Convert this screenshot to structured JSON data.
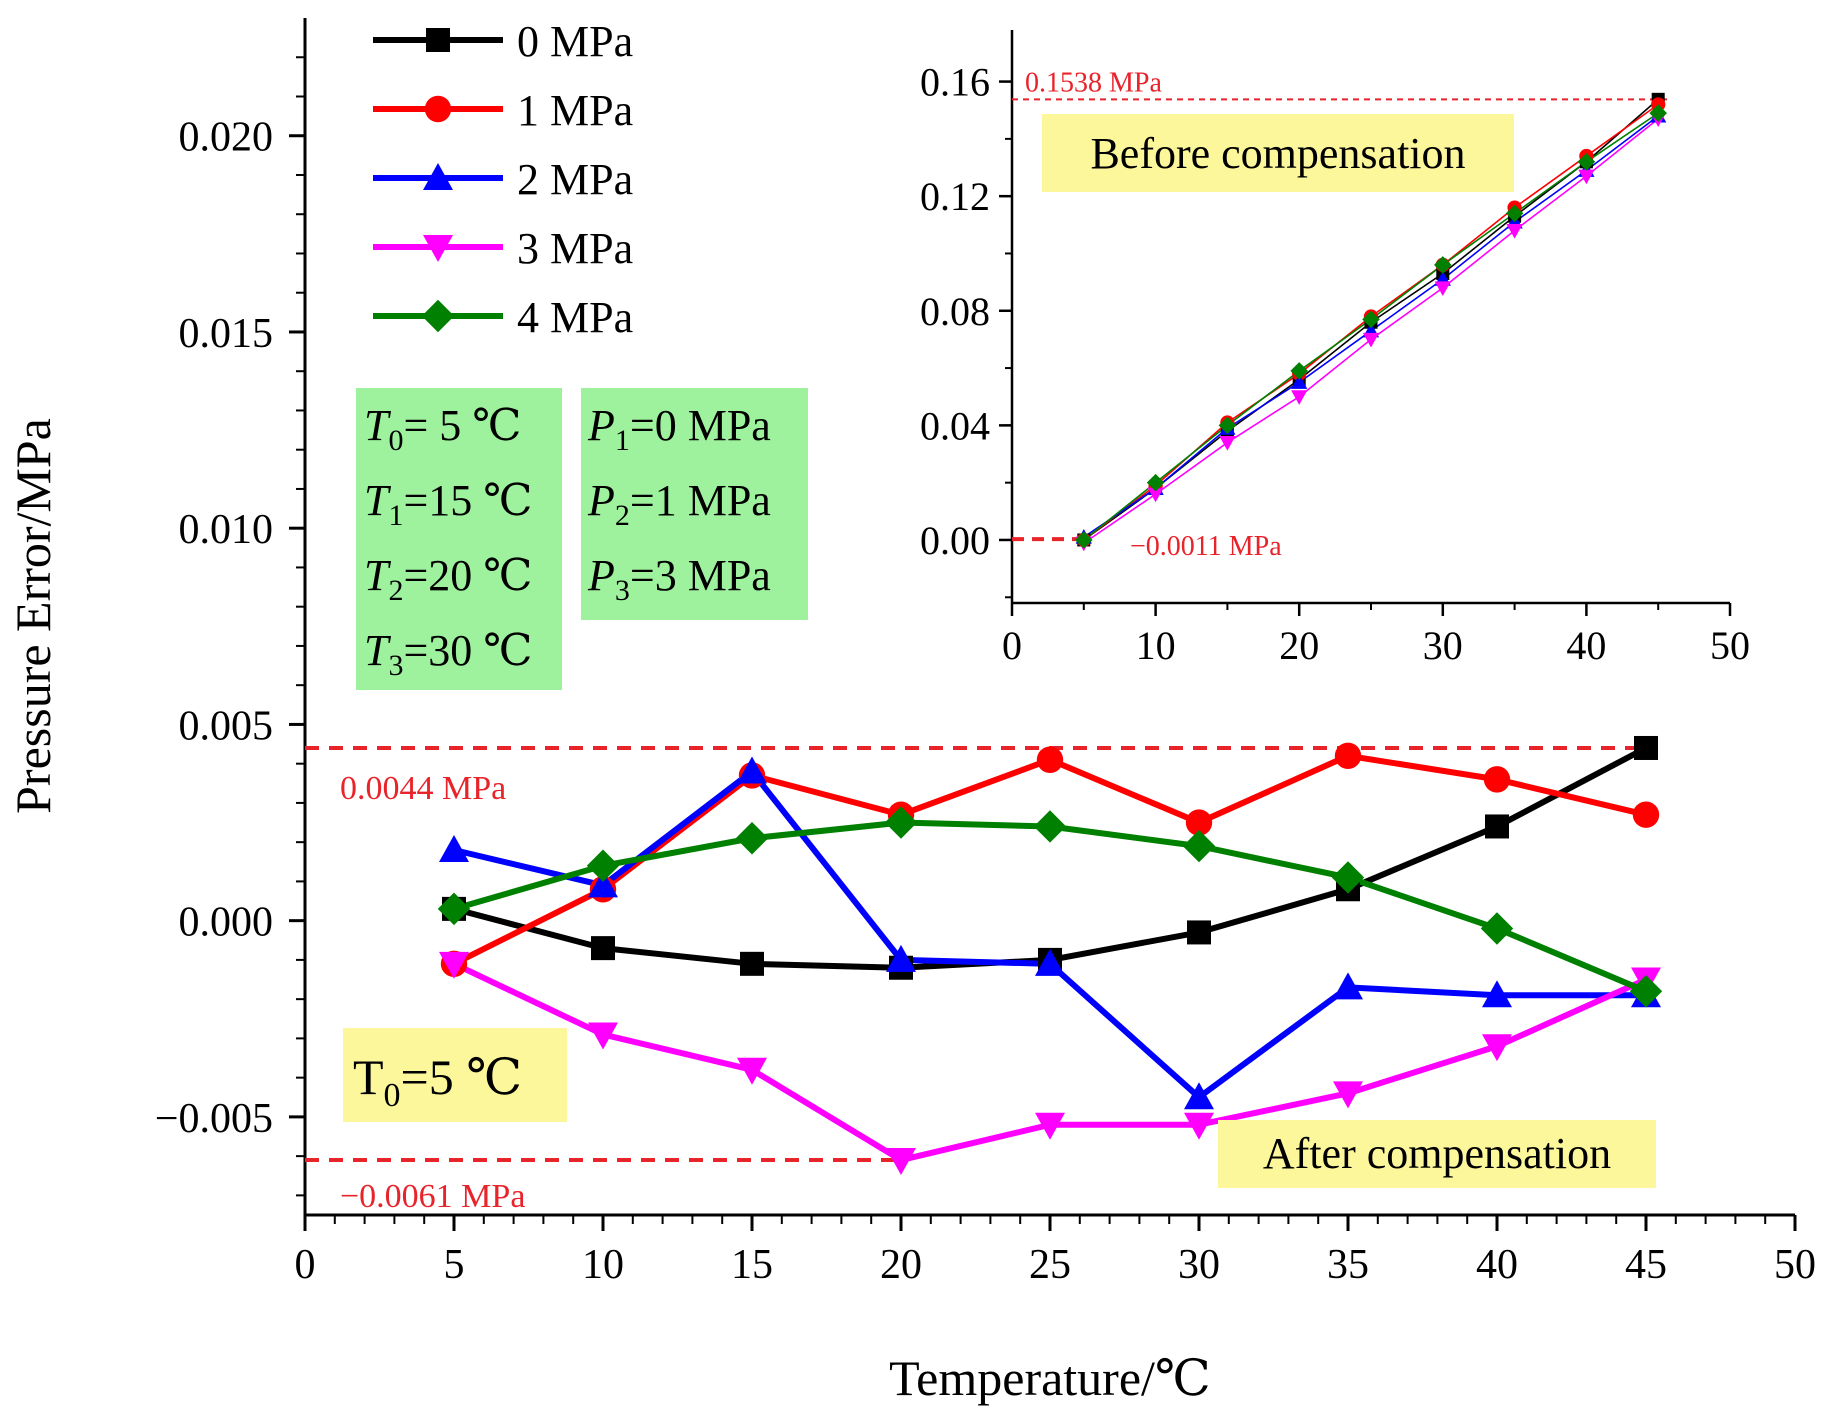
{
  "chart_data": [
    {
      "id": "main",
      "type": "line",
      "xlabel": "Temperature/℃",
      "ylabel": "Pressure Error/MPa",
      "xlim": [
        0,
        50
      ],
      "ylim": [
        -0.0075,
        0.023
      ],
      "xticks": [
        0,
        5,
        10,
        15,
        20,
        25,
        30,
        35,
        40,
        45,
        50
      ],
      "xtick_labels": [
        "0",
        "5",
        "10",
        "15",
        "20",
        "25",
        "30",
        "35",
        "40",
        "45",
        "50"
      ],
      "yticks": [
        -0.005,
        0.0,
        0.005,
        0.01,
        0.015,
        0.02
      ],
      "ytick_labels": [
        "−0.005",
        "0.000",
        "0.005",
        "0.010",
        "0.015",
        "0.020"
      ],
      "x": [
        5,
        10,
        15,
        20,
        25,
        30,
        35,
        40,
        45
      ],
      "series": [
        {
          "name": "0 MPa",
          "color": "#000000",
          "marker": "square",
          "values": [
            0.0003,
            -0.0007,
            -0.0011,
            -0.0012,
            -0.001,
            -0.0003,
            0.0008,
            0.0024,
            0.0044
          ]
        },
        {
          "name": "1 MPa",
          "color": "#ff0000",
          "marker": "circle",
          "values": [
            -0.0011,
            0.0008,
            0.0037,
            0.0027,
            0.0041,
            0.0025,
            0.0042,
            0.0036,
            0.0027
          ]
        },
        {
          "name": "2 MPa",
          "color": "#0000ff",
          "marker": "triangle-up",
          "values": [
            0.0018,
            0.0009,
            0.0038,
            -0.001,
            -0.0011,
            -0.0045,
            -0.0017,
            -0.0019,
            -0.0019
          ]
        },
        {
          "name": "3 MPa",
          "color": "#ff00ff",
          "marker": "triangle-down",
          "values": [
            -0.0011,
            -0.0029,
            -0.0038,
            -0.0061,
            -0.0052,
            -0.0052,
            -0.0044,
            -0.0032,
            -0.0015
          ]
        },
        {
          "name": "4 MPa",
          "color": "#008000",
          "marker": "diamond",
          "values": [
            0.0003,
            0.0014,
            0.0021,
            0.0025,
            0.0024,
            0.0019,
            0.0011,
            -0.0002,
            -0.0018
          ]
        }
      ],
      "reference_lines": [
        {
          "value": 0.0044,
          "label": "0.0044 MPa",
          "color": "#e8232a"
        },
        {
          "value": -0.0061,
          "label": "−0.0061 MPa",
          "color": "#e8232a"
        }
      ],
      "annotations": {
        "after": "After compensation",
        "t0_base": "T",
        "t0_sub": "0",
        "t0_rest": "=5 ℃"
      }
    },
    {
      "id": "inset",
      "type": "line",
      "title": "Before compensation",
      "xlim": [
        0,
        50
      ],
      "ylim": [
        -0.022,
        0.178
      ],
      "xticks": [
        0,
        10,
        20,
        30,
        40,
        50
      ],
      "xtick_labels": [
        "0",
        "10",
        "20",
        "30",
        "40",
        "50"
      ],
      "yticks": [
        0.0,
        0.04,
        0.08,
        0.12,
        0.16
      ],
      "ytick_labels": [
        "0.00",
        "0.04",
        "0.08",
        "0.12",
        "0.16"
      ],
      "x": [
        5,
        10,
        15,
        20,
        25,
        30,
        35,
        40,
        45
      ],
      "series": [
        {
          "name": "0 MPa",
          "color": "#000000",
          "marker": "square",
          "values": [
            0.0,
            0.018,
            0.038,
            0.056,
            0.076,
            0.093,
            0.113,
            0.132,
            0.1538
          ]
        },
        {
          "name": "1 MPa",
          "color": "#ff0000",
          "marker": "circle",
          "values": [
            0.0,
            0.019,
            0.041,
            0.058,
            0.078,
            0.096,
            0.116,
            0.134,
            0.152
          ]
        },
        {
          "name": "2 MPa",
          "color": "#0000ff",
          "marker": "triangle-up",
          "values": [
            0.001,
            0.018,
            0.039,
            0.055,
            0.073,
            0.091,
            0.111,
            0.129,
            0.148
          ]
        },
        {
          "name": "3 MPa",
          "color": "#ff00ff",
          "marker": "triangle-down",
          "values": [
            -0.0011,
            0.016,
            0.034,
            0.05,
            0.07,
            0.088,
            0.108,
            0.127,
            0.147
          ]
        },
        {
          "name": "4 MPa",
          "color": "#008000",
          "marker": "diamond",
          "values": [
            0.0,
            0.02,
            0.04,
            0.059,
            0.077,
            0.096,
            0.114,
            0.132,
            0.149
          ]
        }
      ],
      "reference_lines": [
        {
          "value": 0.1538,
          "label": "0.1538 MPa",
          "color": "#e8232a"
        },
        {
          "value": -0.0011,
          "label": "−0.0011 MPa",
          "color": "#e8232a"
        }
      ]
    }
  ],
  "legend": {
    "entries": [
      {
        "label": "0 MPa",
        "color": "#000000",
        "marker": "square"
      },
      {
        "label": "1 MPa",
        "color": "#ff0000",
        "marker": "circle"
      },
      {
        "label": "2 MPa",
        "color": "#0000ff",
        "marker": "triangle-up"
      },
      {
        "label": "3 MPa",
        "color": "#ff00ff",
        "marker": "triangle-down"
      },
      {
        "label": "4 MPa",
        "color": "#008000",
        "marker": "diamond"
      }
    ]
  },
  "info_boxes": {
    "temperatures": {
      "color": "#9ef29e",
      "lines": [
        {
          "base": "T",
          "sub": "0",
          "rest": "=  5 ℃"
        },
        {
          "base": "T",
          "sub": "1",
          "rest": "=15 ℃"
        },
        {
          "base": "T",
          "sub": "2",
          "rest": "=20 ℃"
        },
        {
          "base": "T",
          "sub": "3",
          "rest": "=30 ℃"
        }
      ]
    },
    "pressures": {
      "color": "#9ef29e",
      "lines": [
        {
          "base": "P",
          "sub": "1",
          "rest": "=0 MPa"
        },
        {
          "base": "P",
          "sub": "2",
          "rest": "=1 MPa"
        },
        {
          "base": "P",
          "sub": "3",
          "rest": "=3 MPa"
        }
      ]
    },
    "label_color": "#fdf79c"
  }
}
